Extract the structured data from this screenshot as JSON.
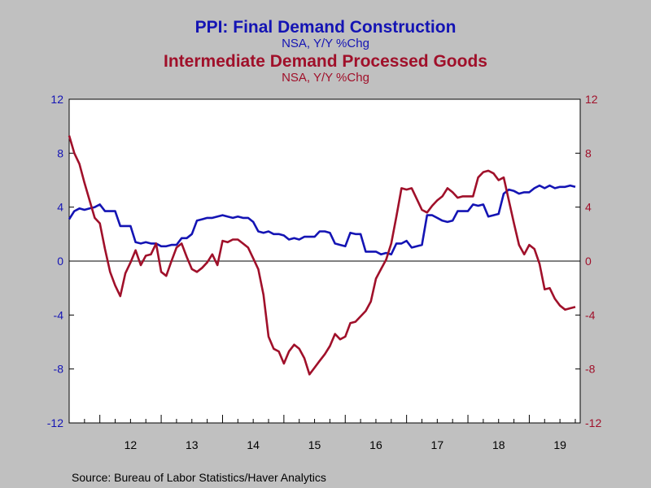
{
  "chart_data": {
    "type": "line",
    "title": "PPI: Final Demand Construction",
    "title_sub": "NSA, Y/Y %Chg",
    "title2": "Intermediate Demand Processed Goods",
    "title2_sub": "NSA, Y/Y %Chg",
    "source": "Source:  Bureau of Labor Statistics/Haver Analytics",
    "xlim": [
      2011.5,
      2019.83
    ],
    "ylim_left": [
      -12,
      12
    ],
    "ylim_right": [
      -12,
      12
    ],
    "grid": false,
    "zero_line": true,
    "y_ticks_left": [
      "12",
      "8",
      "4",
      "0",
      "-4",
      "-8",
      "-12"
    ],
    "y_ticks_right": [
      "12",
      "8",
      "4",
      "0",
      "-4",
      "-8",
      "-12"
    ],
    "x_tick_labels": [
      "12",
      "13",
      "14",
      "15",
      "16",
      "17",
      "18",
      "19"
    ],
    "colors": {
      "series1": "#1414b4",
      "series2": "#a0102a",
      "plot_bg": "#ffffff",
      "page_bg": "#c0c0c0"
    },
    "series": [
      {
        "name": "PPI: Final Demand Construction",
        "axis": "left",
        "x": [
          2011.5,
          2011.583,
          2011.667,
          2011.75,
          2011.833,
          2011.917,
          2012.0,
          2012.083,
          2012.167,
          2012.25,
          2012.333,
          2012.417,
          2012.5,
          2012.583,
          2012.667,
          2012.75,
          2012.833,
          2012.917,
          2013.0,
          2013.083,
          2013.167,
          2013.25,
          2013.333,
          2013.417,
          2013.5,
          2013.583,
          2013.667,
          2013.75,
          2013.833,
          2013.917,
          2014.0,
          2014.083,
          2014.167,
          2014.25,
          2014.333,
          2014.417,
          2014.5,
          2014.583,
          2014.667,
          2014.75,
          2014.833,
          2014.917,
          2015.0,
          2015.083,
          2015.167,
          2015.25,
          2015.333,
          2015.417,
          2015.5,
          2015.583,
          2015.667,
          2015.75,
          2015.833,
          2015.917,
          2016.0,
          2016.083,
          2016.167,
          2016.25,
          2016.333,
          2016.417,
          2016.5,
          2016.583,
          2016.667,
          2016.75,
          2016.833,
          2016.917,
          2017.0,
          2017.083,
          2017.167,
          2017.25,
          2017.333,
          2017.417,
          2017.5,
          2017.583,
          2017.667,
          2017.75,
          2017.833,
          2017.917,
          2018.0,
          2018.083,
          2018.167,
          2018.25,
          2018.333,
          2018.417,
          2018.5,
          2018.583,
          2018.667,
          2018.75,
          2018.833,
          2018.917,
          2019.0,
          2019.083,
          2019.167,
          2019.25,
          2019.333,
          2019.417,
          2019.5,
          2019.583,
          2019.667,
          2019.75
        ],
        "values": [
          3.1,
          3.7,
          3.9,
          3.8,
          3.9,
          4.0,
          4.2,
          3.7,
          3.7,
          3.7,
          2.6,
          2.6,
          2.6,
          1.4,
          1.3,
          1.4,
          1.3,
          1.3,
          1.1,
          1.1,
          1.2,
          1.2,
          1.7,
          1.7,
          2.0,
          3.0,
          3.1,
          3.2,
          3.2,
          3.3,
          3.4,
          3.3,
          3.2,
          3.3,
          3.2,
          3.2,
          2.9,
          2.2,
          2.1,
          2.2,
          2.0,
          2.0,
          1.9,
          1.6,
          1.7,
          1.6,
          1.8,
          1.8,
          1.8,
          2.2,
          2.2,
          2.1,
          1.3,
          1.2,
          1.1,
          2.1,
          2.0,
          2.0,
          0.7,
          0.7,
          0.7,
          0.5,
          0.6,
          0.5,
          1.3,
          1.3,
          1.5,
          1.0,
          1.1,
          1.2,
          3.4,
          3.4,
          3.2,
          3.0,
          2.9,
          3.0,
          3.7,
          3.7,
          3.7,
          4.2,
          4.1,
          4.2,
          3.3,
          3.4,
          3.5,
          5.0,
          5.3,
          5.2,
          5.0,
          5.1,
          5.1,
          5.4,
          5.6,
          5.4,
          5.6,
          5.4,
          5.5,
          5.5,
          5.6,
          5.5
        ]
      },
      {
        "name": "Intermediate Demand Processed Goods",
        "axis": "right",
        "x": [
          2011.5,
          2011.583,
          2011.667,
          2011.75,
          2011.833,
          2011.917,
          2012.0,
          2012.083,
          2012.167,
          2012.25,
          2012.333,
          2012.417,
          2012.5,
          2012.583,
          2012.667,
          2012.75,
          2012.833,
          2012.917,
          2013.0,
          2013.083,
          2013.167,
          2013.25,
          2013.333,
          2013.417,
          2013.5,
          2013.583,
          2013.667,
          2013.75,
          2013.833,
          2013.917,
          2014.0,
          2014.083,
          2014.167,
          2014.25,
          2014.333,
          2014.417,
          2014.5,
          2014.583,
          2014.667,
          2014.75,
          2014.833,
          2014.917,
          2015.0,
          2015.083,
          2015.167,
          2015.25,
          2015.333,
          2015.417,
          2015.5,
          2015.583,
          2015.667,
          2015.75,
          2015.833,
          2015.917,
          2016.0,
          2016.083,
          2016.167,
          2016.25,
          2016.333,
          2016.417,
          2016.5,
          2016.583,
          2016.667,
          2016.75,
          2016.833,
          2016.917,
          2017.0,
          2017.083,
          2017.167,
          2017.25,
          2017.333,
          2017.417,
          2017.5,
          2017.583,
          2017.667,
          2017.75,
          2017.833,
          2017.917,
          2018.0,
          2018.083,
          2018.167,
          2018.25,
          2018.333,
          2018.417,
          2018.5,
          2018.583,
          2018.667,
          2018.75,
          2018.833,
          2018.917,
          2019.0,
          2019.083,
          2019.167,
          2019.25,
          2019.333,
          2019.417,
          2019.5,
          2019.583,
          2019.667,
          2019.75
        ],
        "values": [
          9.3,
          8.0,
          7.2,
          5.8,
          4.5,
          3.2,
          2.8,
          0.9,
          -0.8,
          -1.8,
          -2.6,
          -0.9,
          -0.1,
          0.8,
          -0.3,
          0.4,
          0.5,
          1.3,
          -0.8,
          -1.1,
          0.0,
          1.0,
          1.3,
          0.3,
          -0.6,
          -0.8,
          -0.5,
          -0.1,
          0.5,
          -0.3,
          1.5,
          1.4,
          1.6,
          1.6,
          1.3,
          1.0,
          0.2,
          -0.6,
          -2.5,
          -5.6,
          -6.5,
          -6.7,
          -7.6,
          -6.7,
          -6.2,
          -6.5,
          -7.2,
          -8.4,
          -7.9,
          -7.4,
          -6.9,
          -6.3,
          -5.4,
          -5.8,
          -5.6,
          -4.6,
          -4.5,
          -4.1,
          -3.7,
          -3.0,
          -1.3,
          -0.6,
          0.1,
          1.3,
          3.3,
          5.4,
          5.3,
          5.4,
          4.6,
          3.8,
          3.6,
          4.1,
          4.5,
          4.8,
          5.4,
          5.1,
          4.7,
          4.8,
          4.8,
          4.8,
          6.2,
          6.6,
          6.7,
          6.5,
          6.0,
          6.2,
          4.5,
          2.8,
          1.2,
          0.5,
          1.2,
          0.9,
          -0.2,
          -2.1,
          -2.0,
          -2.8,
          -3.3,
          -3.6,
          -3.5,
          -3.4
        ]
      }
    ]
  }
}
